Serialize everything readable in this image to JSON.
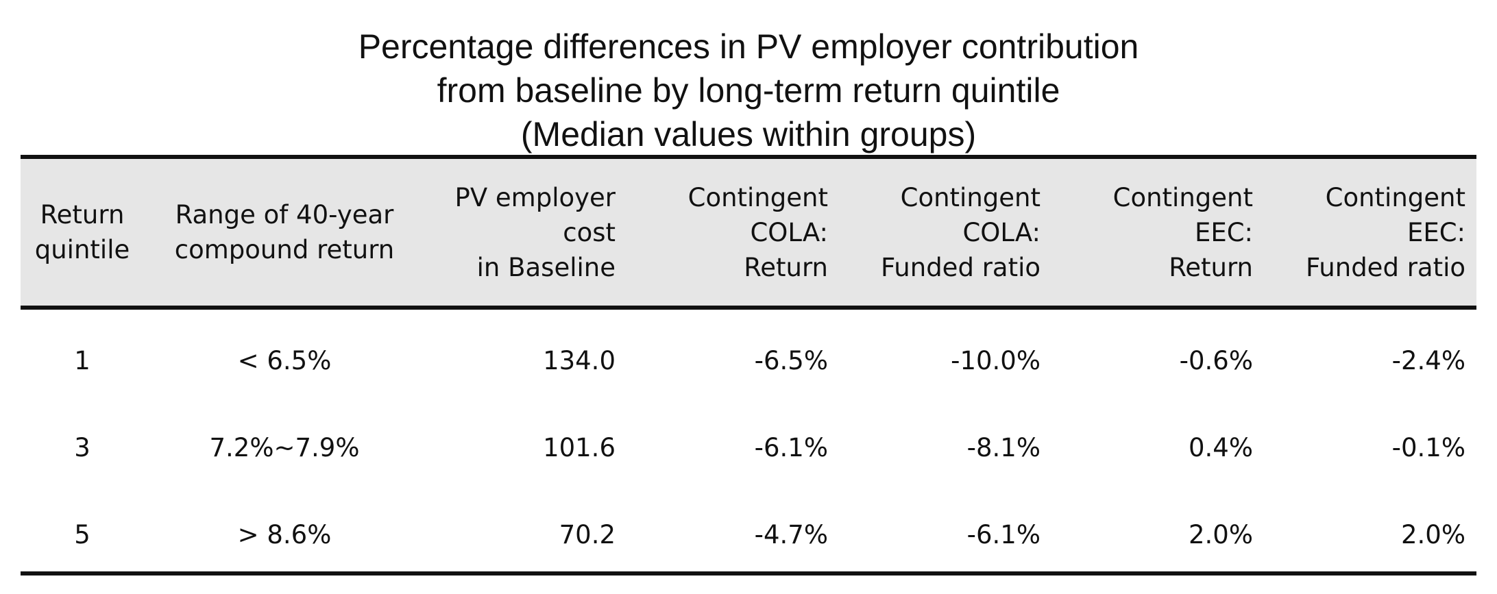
{
  "chart_data": {
    "type": "table",
    "title": [
      "Percentage differences in PV employer contribution",
      "from baseline by long-term return quintile",
      "(Median values within groups)"
    ],
    "columns": [
      {
        "lines": [
          "Return",
          "quintile"
        ],
        "align": "center"
      },
      {
        "lines": [
          "Range of 40-year",
          "compound return"
        ],
        "align": "center"
      },
      {
        "lines": [
          "PV employer",
          "cost",
          "in Baseline"
        ],
        "align": "right"
      },
      {
        "lines": [
          "Contingent",
          "COLA:",
          "Return"
        ],
        "align": "right"
      },
      {
        "lines": [
          "Contingent",
          "COLA:",
          "Funded ratio"
        ],
        "align": "right"
      },
      {
        "lines": [
          "Contingent",
          "EEC:",
          "Return"
        ],
        "align": "right"
      },
      {
        "lines": [
          "Contingent",
          "EEC:",
          "Funded ratio"
        ],
        "align": "right"
      }
    ],
    "rows": [
      [
        "1",
        "< 6.5%",
        "134.0",
        "-6.5%",
        "-10.0%",
        "-0.6%",
        "-2.4%"
      ],
      [
        "3",
        "7.2%~7.9%",
        "101.6",
        "-6.1%",
        "-8.1%",
        "0.4%",
        "-0.1%"
      ],
      [
        "5",
        "> 8.6%",
        "70.2",
        "-4.7%",
        "-6.1%",
        "2.0%",
        "2.0%"
      ]
    ],
    "header_background": "#e6e6e6",
    "rule_color": "#111111"
  }
}
